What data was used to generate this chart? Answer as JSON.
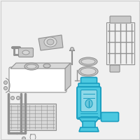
{
  "bg_color": "#f0f0f0",
  "border_color": "#cccccc",
  "highlight_color": "#1a9ec0",
  "highlight_fill": "#4cc8e0",
  "part_color": "#aaaaaa",
  "part_fill": "#d8d8d8",
  "part_stroke": "#909090",
  "part_fill2": "#c8c8c8",
  "white": "#ffffff"
}
